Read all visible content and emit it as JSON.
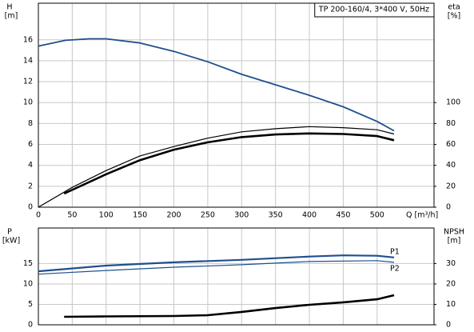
{
  "chart_data": [
    {
      "type": "line",
      "annotation": "TP 200-160/4, 3*400 V, 50Hz",
      "y_label": "H",
      "y_unit": "[m]",
      "y2_label": "eta",
      "y2_unit": "[%]",
      "x_label": "Q [m³/h]",
      "xlim": [
        0,
        584
      ],
      "xticks": [
        0,
        50,
        100,
        150,
        200,
        250,
        300,
        350,
        400,
        450,
        500
      ],
      "ylim": [
        0,
        19.5
      ],
      "yticks": [
        0,
        2,
        4,
        6,
        8,
        10,
        12,
        14,
        16
      ],
      "y2lim": [
        0,
        195
      ],
      "y2ticks": [
        0,
        20,
        40,
        60,
        80,
        100
      ],
      "grid": true,
      "series": [
        {
          "color": "#1f4f8f",
          "x": [
            0,
            40,
            75,
            100,
            150,
            200,
            250,
            300,
            350,
            400,
            450,
            500,
            525
          ],
          "values": [
            15.4,
            15.95,
            16.1,
            16.1,
            15.7,
            14.9,
            13.9,
            12.7,
            11.7,
            10.7,
            9.6,
            8.2,
            7.3
          ]
        },
        {
          "color": "#000000",
          "axis": "y2",
          "x": [
            0,
            50,
            100,
            150,
            200,
            250,
            300,
            350,
            400,
            450,
            500,
            525
          ],
          "values": [
            0,
            19,
            35,
            49,
            58,
            66,
            72,
            75,
            77,
            76,
            74,
            70
          ]
        },
        {
          "color": "#000000",
          "axis": "y2",
          "x": [
            38,
            100,
            150,
            200,
            250,
            300,
            350,
            400,
            450,
            500,
            525
          ],
          "values": [
            13,
            31.5,
            45,
            55,
            62,
            67,
            69.5,
            70.5,
            70,
            68,
            64
          ]
        }
      ]
    },
    {
      "type": "line",
      "y_label": "P",
      "y_unit": "[kW]",
      "y2_label": "NPSH",
      "y2_unit": "[m]",
      "xlim": [
        0,
        584
      ],
      "xticks": [
        0,
        50,
        100,
        150,
        200,
        250,
        300,
        350,
        400,
        450,
        500
      ],
      "ylim": [
        0,
        23.7
      ],
      "yticks": [
        0,
        5,
        10,
        15
      ],
      "y2lim": [
        0,
        47.4
      ],
      "y2ticks": [
        0,
        10,
        20,
        30
      ],
      "grid": true,
      "series": [
        {
          "name": "P1",
          "color": "#1f4f8f",
          "x": [
            0,
            100,
            200,
            300,
            400,
            450,
            500,
            525
          ],
          "values": [
            13.1,
            14.5,
            15.3,
            15.9,
            16.7,
            17.0,
            16.9,
            16.5
          ]
        },
        {
          "name": "P2",
          "color": "#1f4f8f",
          "x": [
            0,
            100,
            200,
            300,
            400,
            500,
            525
          ],
          "values": [
            12.4,
            13.3,
            14.1,
            14.7,
            15.5,
            15.7,
            15.3
          ]
        },
        {
          "color": "#000000",
          "axis": "y2",
          "x": [
            38,
            100,
            200,
            250,
            300,
            350,
            400,
            450,
            500,
            525
          ],
          "values": [
            3.9,
            4.1,
            4.3,
            4.7,
            6.3,
            8.2,
            9.8,
            11,
            12.5,
            14.5
          ]
        }
      ]
    }
  ]
}
